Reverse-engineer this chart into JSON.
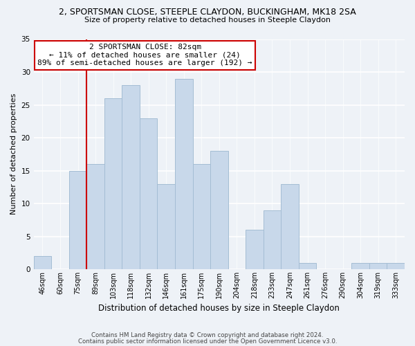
{
  "title": "2, SPORTSMAN CLOSE, STEEPLE CLAYDON, BUCKINGHAM, MK18 2SA",
  "subtitle": "Size of property relative to detached houses in Steeple Claydon",
  "xlabel": "Distribution of detached houses by size in Steeple Claydon",
  "ylabel": "Number of detached properties",
  "bin_labels": [
    "46sqm",
    "60sqm",
    "75sqm",
    "89sqm",
    "103sqm",
    "118sqm",
    "132sqm",
    "146sqm",
    "161sqm",
    "175sqm",
    "190sqm",
    "204sqm",
    "218sqm",
    "233sqm",
    "247sqm",
    "261sqm",
    "276sqm",
    "290sqm",
    "304sqm",
    "319sqm",
    "333sqm"
  ],
  "bar_values": [
    2,
    0,
    15,
    16,
    26,
    28,
    23,
    13,
    29,
    16,
    18,
    0,
    6,
    9,
    13,
    1,
    0,
    0,
    1,
    1,
    1
  ],
  "bar_color": "#c8d8ea",
  "bar_edge_color": "#a4bdd4",
  "ylim": [
    0,
    35
  ],
  "yticks": [
    0,
    5,
    10,
    15,
    20,
    25,
    30,
    35
  ],
  "vline_bin_index": 3,
  "vline_color": "#cc0000",
  "annotation_line1": "2 SPORTSMAN CLOSE: 82sqm",
  "annotation_line2": "← 11% of detached houses are smaller (24)",
  "annotation_line3": "89% of semi-detached houses are larger (192) →",
  "annotation_box_color": "#ffffff",
  "annotation_box_edge": "#cc0000",
  "footer_line1": "Contains HM Land Registry data © Crown copyright and database right 2024.",
  "footer_line2": "Contains public sector information licensed under the Open Government Licence v3.0.",
  "background_color": "#eef2f7"
}
